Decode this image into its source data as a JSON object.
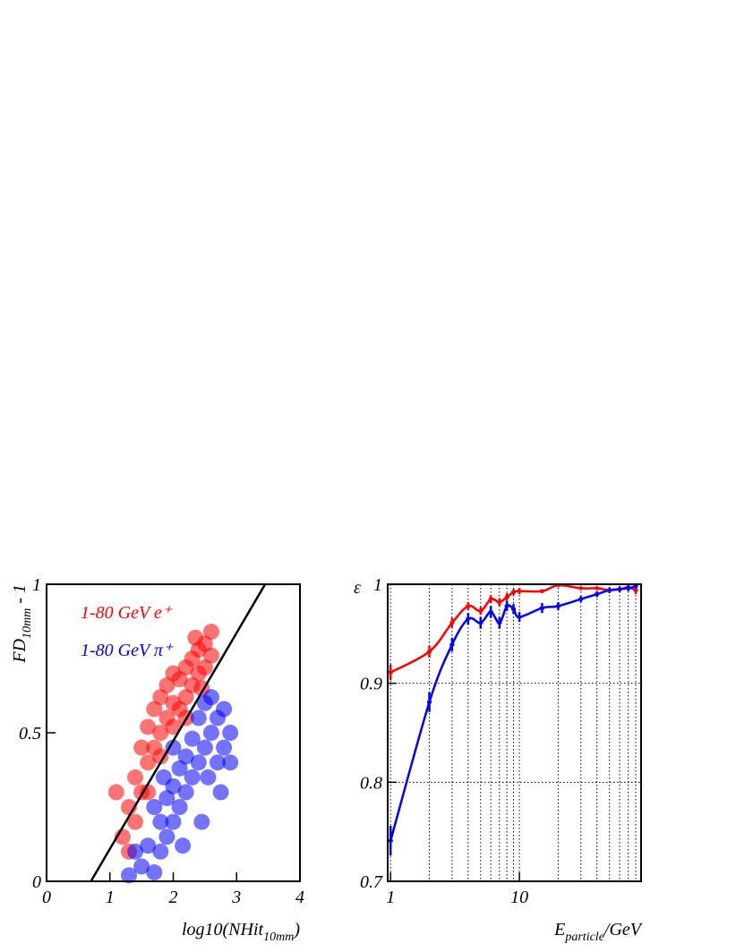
{
  "chart_data": [
    {
      "type": "scatter",
      "xlabel": [
        "log10(NHit",
        "10mm",
        ")"
      ],
      "ylabel": [
        "FD",
        "10mm",
        " - 1"
      ],
      "xlim": [
        0,
        4
      ],
      "xticks": [
        0,
        1,
        2,
        3,
        4
      ],
      "ylim": [
        0,
        1
      ],
      "yticks": [
        0,
        0.5,
        1
      ],
      "legend": "upper left",
      "series": [
        {
          "name": "1-80 GeV e⁺",
          "color": "#ff0000",
          "x": [
            1.3,
            1.4,
            1.5,
            1.5,
            1.6,
            1.6,
            1.7,
            1.7,
            1.8,
            1.8,
            1.9,
            1.9,
            2.0,
            2.0,
            2.1,
            2.1,
            2.2,
            2.2,
            2.3,
            2.3,
            2.4,
            2.4,
            2.5,
            2.5,
            2.6,
            2.6,
            1.2,
            1.3,
            1.4,
            2.0,
            1.8,
            2.2,
            2.45,
            1.1,
            1.6,
            2.35
          ],
          "y": [
            0.25,
            0.35,
            0.3,
            0.45,
            0.4,
            0.52,
            0.45,
            0.58,
            0.5,
            0.62,
            0.55,
            0.66,
            0.6,
            0.7,
            0.58,
            0.68,
            0.62,
            0.72,
            0.66,
            0.75,
            0.7,
            0.78,
            0.72,
            0.8,
            0.76,
            0.84,
            0.15,
            0.1,
            0.2,
            0.52,
            0.42,
            0.55,
            0.65,
            0.3,
            0.3,
            0.82
          ]
        },
        {
          "name": "1-80 GeV π⁺",
          "color": "#0000ff",
          "x": [
            1.5,
            1.6,
            1.7,
            1.8,
            1.8,
            1.9,
            1.9,
            2.0,
            2.0,
            2.1,
            2.1,
            2.2,
            2.2,
            2.3,
            2.3,
            2.4,
            2.4,
            2.5,
            2.5,
            2.6,
            2.6,
            2.7,
            2.7,
            2.8,
            2.8,
            2.9,
            2.9,
            1.7,
            1.4,
            2.15,
            2.45,
            2.0,
            1.3,
            2.75,
            1.85,
            2.55
          ],
          "y": [
            0.05,
            0.12,
            0.03,
            0.1,
            0.2,
            0.15,
            0.28,
            0.2,
            0.32,
            0.25,
            0.38,
            0.3,
            0.42,
            0.35,
            0.48,
            0.4,
            0.55,
            0.45,
            0.6,
            0.5,
            0.62,
            0.4,
            0.55,
            0.45,
            0.58,
            0.5,
            0.4,
            0.25,
            0.1,
            0.12,
            0.2,
            0.45,
            0.02,
            0.3,
            0.35,
            0.35
          ]
        },
        {
          "type": "line",
          "color": "#000000",
          "x": [
            0.7,
            3.45
          ],
          "y": [
            0,
            1
          ]
        }
      ]
    },
    {
      "type": "line",
      "xlabel": [
        "E",
        "particle",
        "/GeV"
      ],
      "ylabel": [
        "ε"
      ],
      "xscale": "log",
      "xlim": [
        0.95,
        88
      ],
      "xticks": [
        1,
        10
      ],
      "ylim": [
        0.7,
        1
      ],
      "yticks": [
        0.7,
        0.8,
        0.9,
        1
      ],
      "grid": true,
      "xgrid": [
        1,
        2,
        3,
        4,
        5,
        6,
        7,
        8,
        9,
        10,
        20,
        30,
        40,
        50,
        60,
        70,
        80
      ],
      "ygrid": [
        0.8,
        0.9
      ],
      "x": [
        1,
        2,
        3,
        4,
        5,
        6,
        7,
        8,
        9,
        10,
        15,
        20,
        30,
        40,
        50,
        60,
        70,
        80
      ],
      "series": [
        {
          "color": "#ff0000",
          "values": [
            0.911,
            0.932,
            0.961,
            0.978,
            0.973,
            0.985,
            0.982,
            0.987,
            0.992,
            0.993,
            0.993,
            0.999,
            0.996,
            0.996,
            0.994,
            0.995,
            0.997,
            0.994
          ],
          "errors": [
            0.008,
            0.006,
            0.005,
            0.004,
            0.004,
            0.004,
            0.004,
            0.004,
            0.003,
            0.003,
            0.002,
            0.002,
            0.002,
            0.002,
            0.002,
            0.002,
            0.002,
            0.004
          ]
        },
        {
          "color": "#0000ff",
          "values": [
            0.741,
            0.881,
            0.939,
            0.965,
            0.961,
            0.972,
            0.961,
            0.978,
            0.975,
            0.967,
            0.976,
            0.978,
            0.985,
            0.99,
            0.994,
            0.995,
            0.996,
            0.998
          ],
          "errors": [
            0.015,
            0.01,
            0.007,
            0.006,
            0.006,
            0.006,
            0.006,
            0.005,
            0.005,
            0.005,
            0.005,
            0.004,
            0.003,
            0.003,
            0.003,
            0.003,
            0.003,
            0.003
          ]
        }
      ]
    }
  ]
}
